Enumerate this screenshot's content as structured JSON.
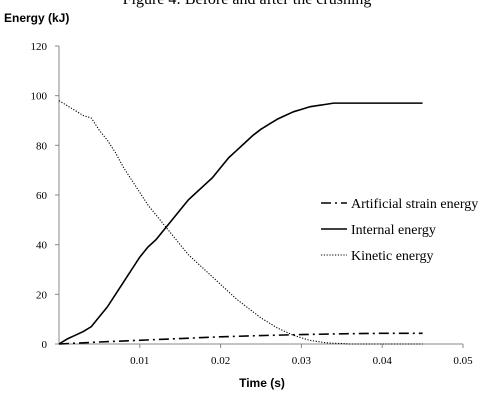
{
  "chart_data": {
    "type": "line",
    "title": "Figure 4: Before and after the crushing",
    "xlabel": "Time (s)",
    "ylabel": "Energy (kJ)",
    "xlim": [
      0,
      0.05
    ],
    "ylim": [
      0,
      120
    ],
    "x_ticks": [
      "0.01",
      "0.02",
      "0.03",
      "0.04",
      "0.05"
    ],
    "y_ticks": [
      "0",
      "20",
      "40",
      "60",
      "80",
      "100",
      "120"
    ],
    "grid": false,
    "legend_position": "right",
    "series": [
      {
        "name": "Artificial strain energy",
        "style": "dash-dot",
        "color": "#000000",
        "x": [
          0,
          0.005,
          0.01,
          0.015,
          0.02,
          0.025,
          0.03,
          0.035,
          0.04,
          0.045
        ],
        "y": [
          0,
          0.8,
          1.5,
          2.2,
          2.9,
          3.4,
          3.8,
          4.1,
          4.3,
          4.3
        ]
      },
      {
        "name": "Internal energy",
        "style": "solid",
        "color": "#000000",
        "x": [
          0,
          0.001,
          0.002,
          0.003,
          0.004,
          0.005,
          0.006,
          0.007,
          0.008,
          0.009,
          0.01,
          0.011,
          0.012,
          0.013,
          0.014,
          0.015,
          0.016,
          0.017,
          0.018,
          0.019,
          0.02,
          0.021,
          0.022,
          0.023,
          0.024,
          0.025,
          0.026,
          0.027,
          0.028,
          0.029,
          0.03,
          0.031,
          0.032,
          0.033,
          0.034,
          0.035,
          0.036,
          0.037,
          0.038,
          0.04,
          0.042,
          0.045
        ],
        "y": [
          0,
          2,
          3.5,
          5,
          7,
          11,
          15,
          20,
          25,
          30,
          35,
          39,
          42,
          46,
          50,
          54,
          58,
          61,
          64,
          67,
          71,
          75,
          78,
          81,
          84,
          86.5,
          88.5,
          90.5,
          92,
          93.5,
          94.5,
          95.5,
          96,
          96.5,
          97,
          97,
          97,
          97,
          97,
          97,
          97,
          97
        ]
      },
      {
        "name": "Kinetic energy",
        "style": "dotted",
        "color": "#000000",
        "x": [
          0,
          0.001,
          0.002,
          0.003,
          0.004,
          0.005,
          0.006,
          0.007,
          0.008,
          0.009,
          0.01,
          0.011,
          0.012,
          0.013,
          0.014,
          0.015,
          0.016,
          0.017,
          0.018,
          0.019,
          0.02,
          0.021,
          0.022,
          0.023,
          0.024,
          0.025,
          0.026,
          0.027,
          0.028,
          0.029,
          0.03,
          0.031,
          0.032,
          0.033,
          0.034,
          0.035,
          0.036,
          0.037,
          0.038,
          0.04,
          0.042,
          0.045
        ],
        "y": [
          98,
          96,
          94,
          92,
          91,
          86,
          82,
          77,
          71,
          66,
          61,
          56,
          52,
          48,
          44,
          40,
          36,
          33,
          30,
          27,
          24,
          21,
          18,
          15.5,
          13,
          10.5,
          8.5,
          6.5,
          5,
          3.5,
          2.5,
          1.5,
          1,
          0.5,
          0.3,
          0.2,
          0,
          0,
          0,
          0,
          0,
          0
        ]
      }
    ]
  }
}
